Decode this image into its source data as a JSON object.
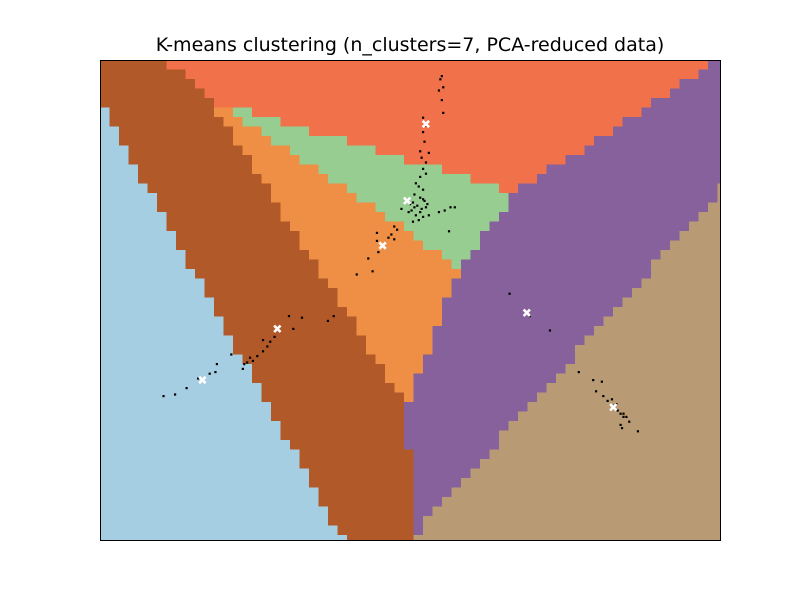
{
  "chart_data": {
    "type": "scatter",
    "title": "K-means clustering (n_clusters=7, PCA-reduced data)",
    "xlabel": "",
    "ylabel": "",
    "xlim": [
      -2.2,
      2.1
    ],
    "ylim": [
      -1.5,
      1.5
    ],
    "ticks": "none",
    "grid": false,
    "legend": "none",
    "region_colors": [
      "#a6cee3",
      "#b15928",
      "#ee8f45",
      "#f1714a",
      "#97cd91",
      "#87619b",
      "#b89b74"
    ],
    "centroids": [
      [
        -1.49,
        -0.5
      ],
      [
        -0.97,
        -0.18
      ],
      [
        -0.24,
        0.34
      ],
      [
        0.06,
        1.1
      ],
      [
        -0.07,
        0.62
      ],
      [
        0.76,
        -0.08
      ],
      [
        1.36,
        -0.67
      ]
    ],
    "points": [
      [
        0.17,
        1.4
      ],
      [
        0.16,
        1.38
      ],
      [
        0.18,
        1.33
      ],
      [
        0.15,
        1.31
      ],
      [
        0.17,
        1.25
      ],
      [
        0.18,
        1.17
      ],
      [
        0.04,
        1.14
      ],
      [
        0.06,
        1.09
      ],
      [
        0.04,
        1.05
      ],
      [
        0.05,
        0.99
      ],
      [
        0.02,
        0.93
      ],
      [
        0.08,
        0.92
      ],
      [
        0.03,
        0.89
      ],
      [
        0.06,
        0.86
      ],
      [
        0.04,
        0.82
      ],
      [
        0.06,
        0.79
      ],
      [
        0.02,
        0.77
      ],
      [
        -0.01,
        0.73
      ],
      [
        0.01,
        0.71
      ],
      [
        0.04,
        0.69
      ],
      [
        -0.02,
        0.66
      ],
      [
        0.02,
        0.64
      ],
      [
        0.05,
        0.62
      ],
      [
        -0.03,
        0.61
      ],
      [
        0.0,
        0.59
      ],
      [
        0.06,
        0.58
      ],
      [
        -0.04,
        0.56
      ],
      [
        0.02,
        0.55
      ],
      [
        -0.01,
        0.53
      ],
      [
        0.04,
        0.52
      ],
      [
        -0.06,
        0.55
      ],
      [
        0.07,
        0.6
      ],
      [
        -0.02,
        0.58
      ],
      [
        0.03,
        0.57
      ],
      [
        -0.05,
        0.6
      ],
      [
        0.01,
        0.5
      ],
      [
        0.08,
        0.53
      ],
      [
        0.04,
        0.63
      ],
      [
        -0.11,
        0.57
      ],
      [
        0.15,
        0.55
      ],
      [
        0.19,
        0.56
      ],
      [
        0.23,
        0.58
      ],
      [
        0.26,
        0.58
      ],
      [
        0.22,
        0.43
      ],
      [
        -0.14,
        0.44
      ],
      [
        -0.16,
        0.38
      ],
      [
        -0.18,
        0.41
      ],
      [
        -0.28,
        0.42
      ],
      [
        -0.28,
        0.37
      ],
      [
        -0.34,
        0.26
      ],
      [
        -0.42,
        0.16
      ],
      [
        -0.31,
        0.18
      ],
      [
        -0.27,
        0.3
      ],
      [
        -0.16,
        0.46
      ],
      [
        -0.2,
        0.39
      ],
      [
        -0.03,
        0.49
      ],
      [
        -0.58,
        -0.1
      ],
      [
        -0.62,
        -0.13
      ],
      [
        -0.8,
        -0.11
      ],
      [
        -0.89,
        -0.1
      ],
      [
        -0.86,
        -0.18
      ],
      [
        -0.99,
        -0.23
      ],
      [
        -1.02,
        -0.26
      ],
      [
        -1.07,
        -0.32
      ],
      [
        -1.11,
        -0.35
      ],
      [
        -1.16,
        -0.36
      ],
      [
        -1.18,
        -0.39
      ],
      [
        -1.21,
        -0.43
      ],
      [
        -1.29,
        -0.34
      ],
      [
        -1.39,
        -0.4
      ],
      [
        -1.44,
        -0.46
      ],
      [
        -1.52,
        -0.49
      ],
      [
        -1.6,
        -0.55
      ],
      [
        -1.68,
        -0.59
      ],
      [
        -1.76,
        -0.6
      ],
      [
        -1.07,
        -0.25
      ],
      [
        -1.04,
        -0.29
      ],
      [
        -1.4,
        -0.45
      ],
      [
        -1.14,
        -0.38
      ],
      [
        -1.2,
        -0.4
      ],
      [
        0.64,
        0.04
      ],
      [
        0.78,
        -0.1
      ],
      [
        0.92,
        -0.19
      ],
      [
        1.12,
        -0.45
      ],
      [
        1.22,
        -0.5
      ],
      [
        1.28,
        -0.51
      ],
      [
        1.24,
        -0.57
      ],
      [
        1.29,
        -0.6
      ],
      [
        1.32,
        -0.63
      ],
      [
        1.35,
        -0.62
      ],
      [
        1.38,
        -0.65
      ],
      [
        1.39,
        -0.69
      ],
      [
        1.41,
        -0.71
      ],
      [
        1.43,
        -0.71
      ],
      [
        1.45,
        -0.73
      ],
      [
        1.47,
        -0.76
      ],
      [
        1.41,
        -0.78
      ],
      [
        1.42,
        -0.8
      ],
      [
        1.36,
        -0.66
      ],
      [
        1.43,
        -0.73
      ],
      [
        1.53,
        -0.82
      ]
    ]
  }
}
